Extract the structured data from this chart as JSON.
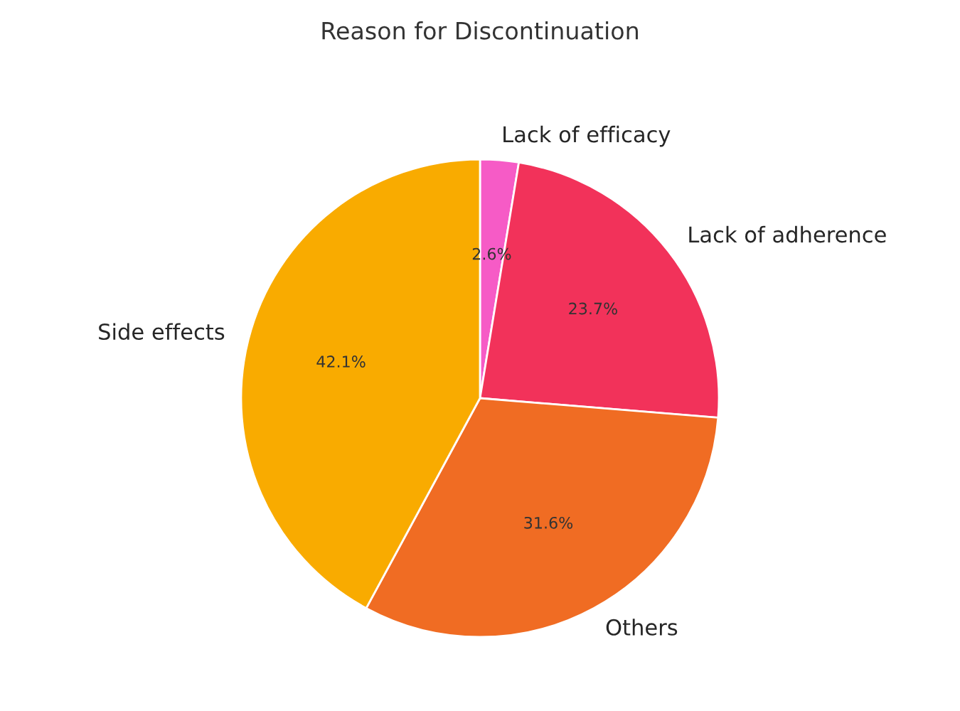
{
  "chart_data": {
    "type": "pie",
    "title": "Reason for Discontinuation",
    "categories": [
      "Lack of efficacy",
      "Lack of adherence",
      "Others",
      "Side effects"
    ],
    "values": [
      2.6,
      23.7,
      31.6,
      42.1
    ],
    "colors": [
      "#f65bc6",
      "#f2325a",
      "#f06c23",
      "#f9ab00"
    ],
    "value_labels": [
      "2.6%",
      "23.7%",
      "31.6%",
      "42.1%"
    ],
    "legend": false
  }
}
